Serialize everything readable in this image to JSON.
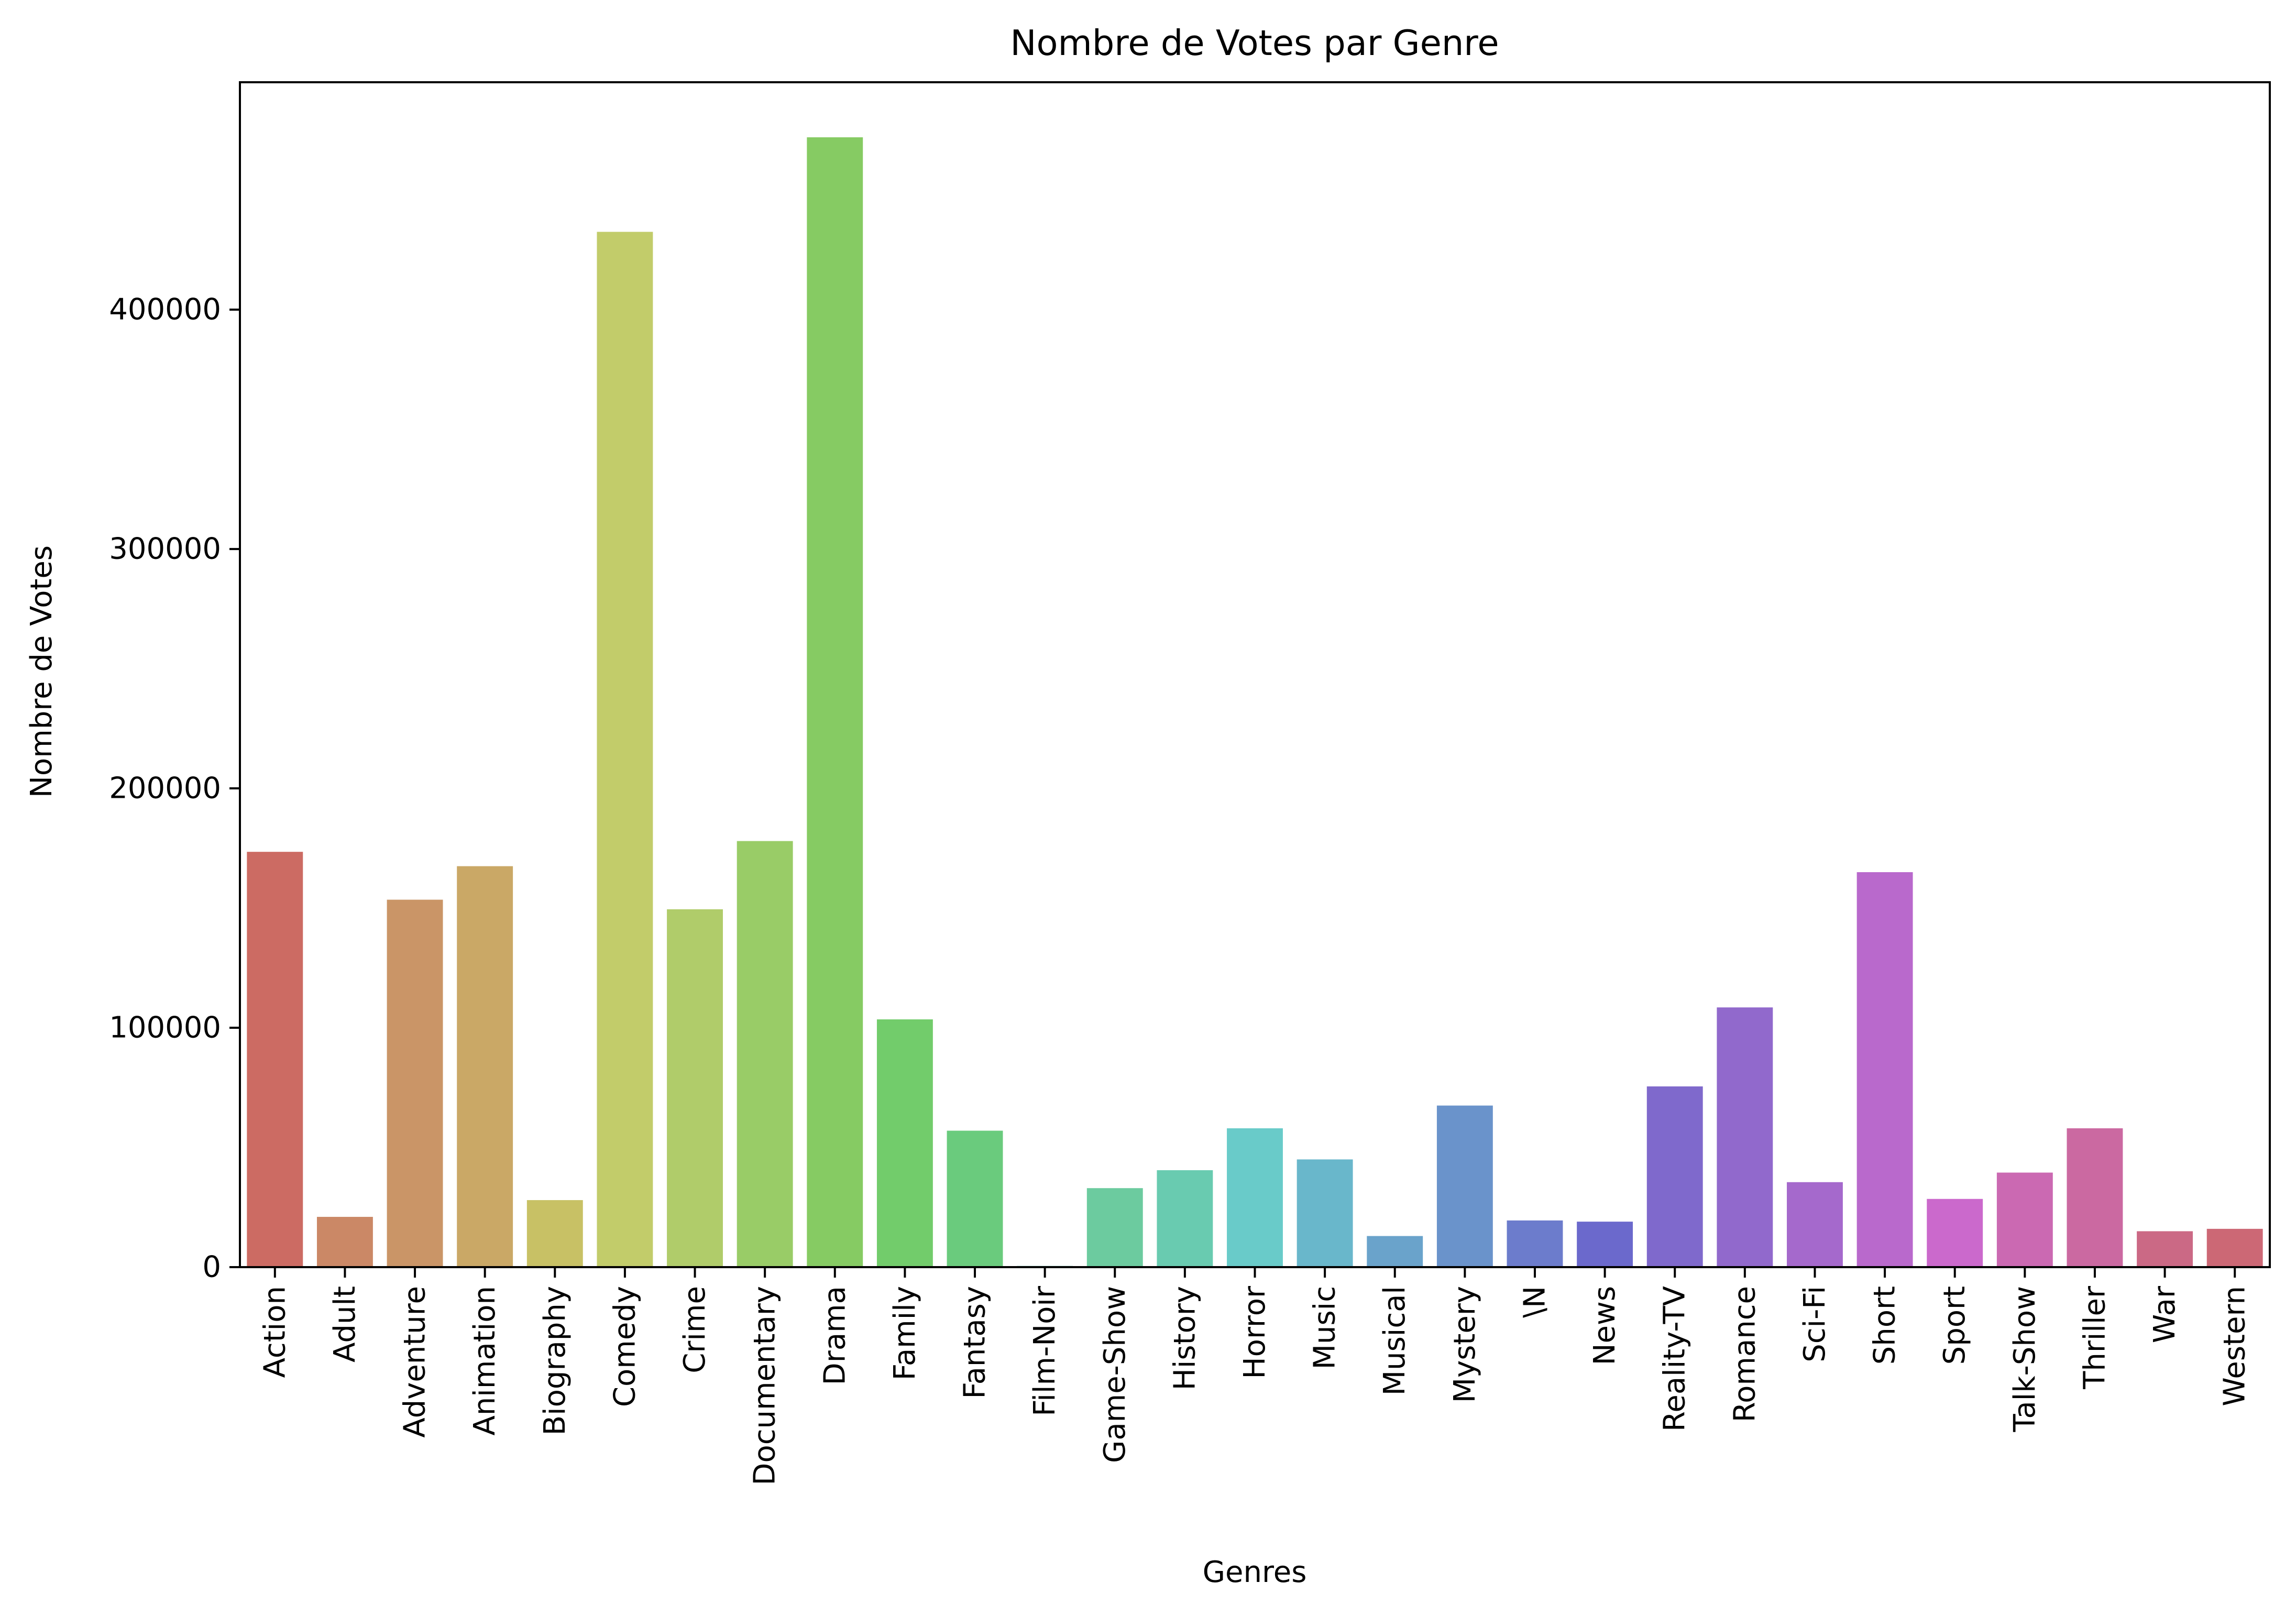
{
  "chart_data": {
    "type": "bar",
    "title": "Nombre de Votes par Genre",
    "xlabel": "Genres",
    "ylabel": "Nombre de Votes",
    "ylim": [
      0,
      495000
    ],
    "yticks": [
      0,
      100000,
      200000,
      300000,
      400000
    ],
    "grid": false,
    "legend": "none",
    "categories": [
      "Action",
      "Adult",
      "Adventure",
      "Animation",
      "Biography",
      "Comedy",
      "Crime",
      "Documentary",
      "Drama",
      "Family",
      "Fantasy",
      "Film-Noir",
      "Game-Show",
      "History",
      "Horror",
      "Music",
      "Musical",
      "Mystery",
      "\\N",
      "News",
      "Reality-TV",
      "Romance",
      "Sci-Fi",
      "Short",
      "Sport",
      "Talk-Show",
      "Thriller",
      "War",
      "Western"
    ],
    "values": [
      173500,
      21000,
      153500,
      167500,
      28000,
      432500,
      149500,
      178000,
      472000,
      103500,
      57000,
      500,
      33000,
      40500,
      58000,
      45000,
      13000,
      67500,
      19500,
      19000,
      75500,
      108500,
      35500,
      165000,
      28500,
      39500,
      58000,
      15000,
      16000
    ],
    "colors": [
      "#cc6b63",
      "#cb8866",
      "#ca9567",
      "#caa866",
      "#c8c165",
      "#c2cc6a",
      "#b0cc6a",
      "#99cc67",
      "#86cb63",
      "#72cc6b",
      "#6acb7d",
      "#6accb2",
      "#6ccb9f",
      "#69cbb0",
      "#69cbc9",
      "#69b7cb",
      "#6aa3cb",
      "#6a93cb",
      "#6c7ccc",
      "#6b69cc",
      "#7f69cc",
      "#9169cc",
      "#a569cc",
      "#b969cc",
      "#cb69cc",
      "#cb69b2",
      "#cb69a1",
      "#cb6985",
      "#cc6875"
    ]
  }
}
